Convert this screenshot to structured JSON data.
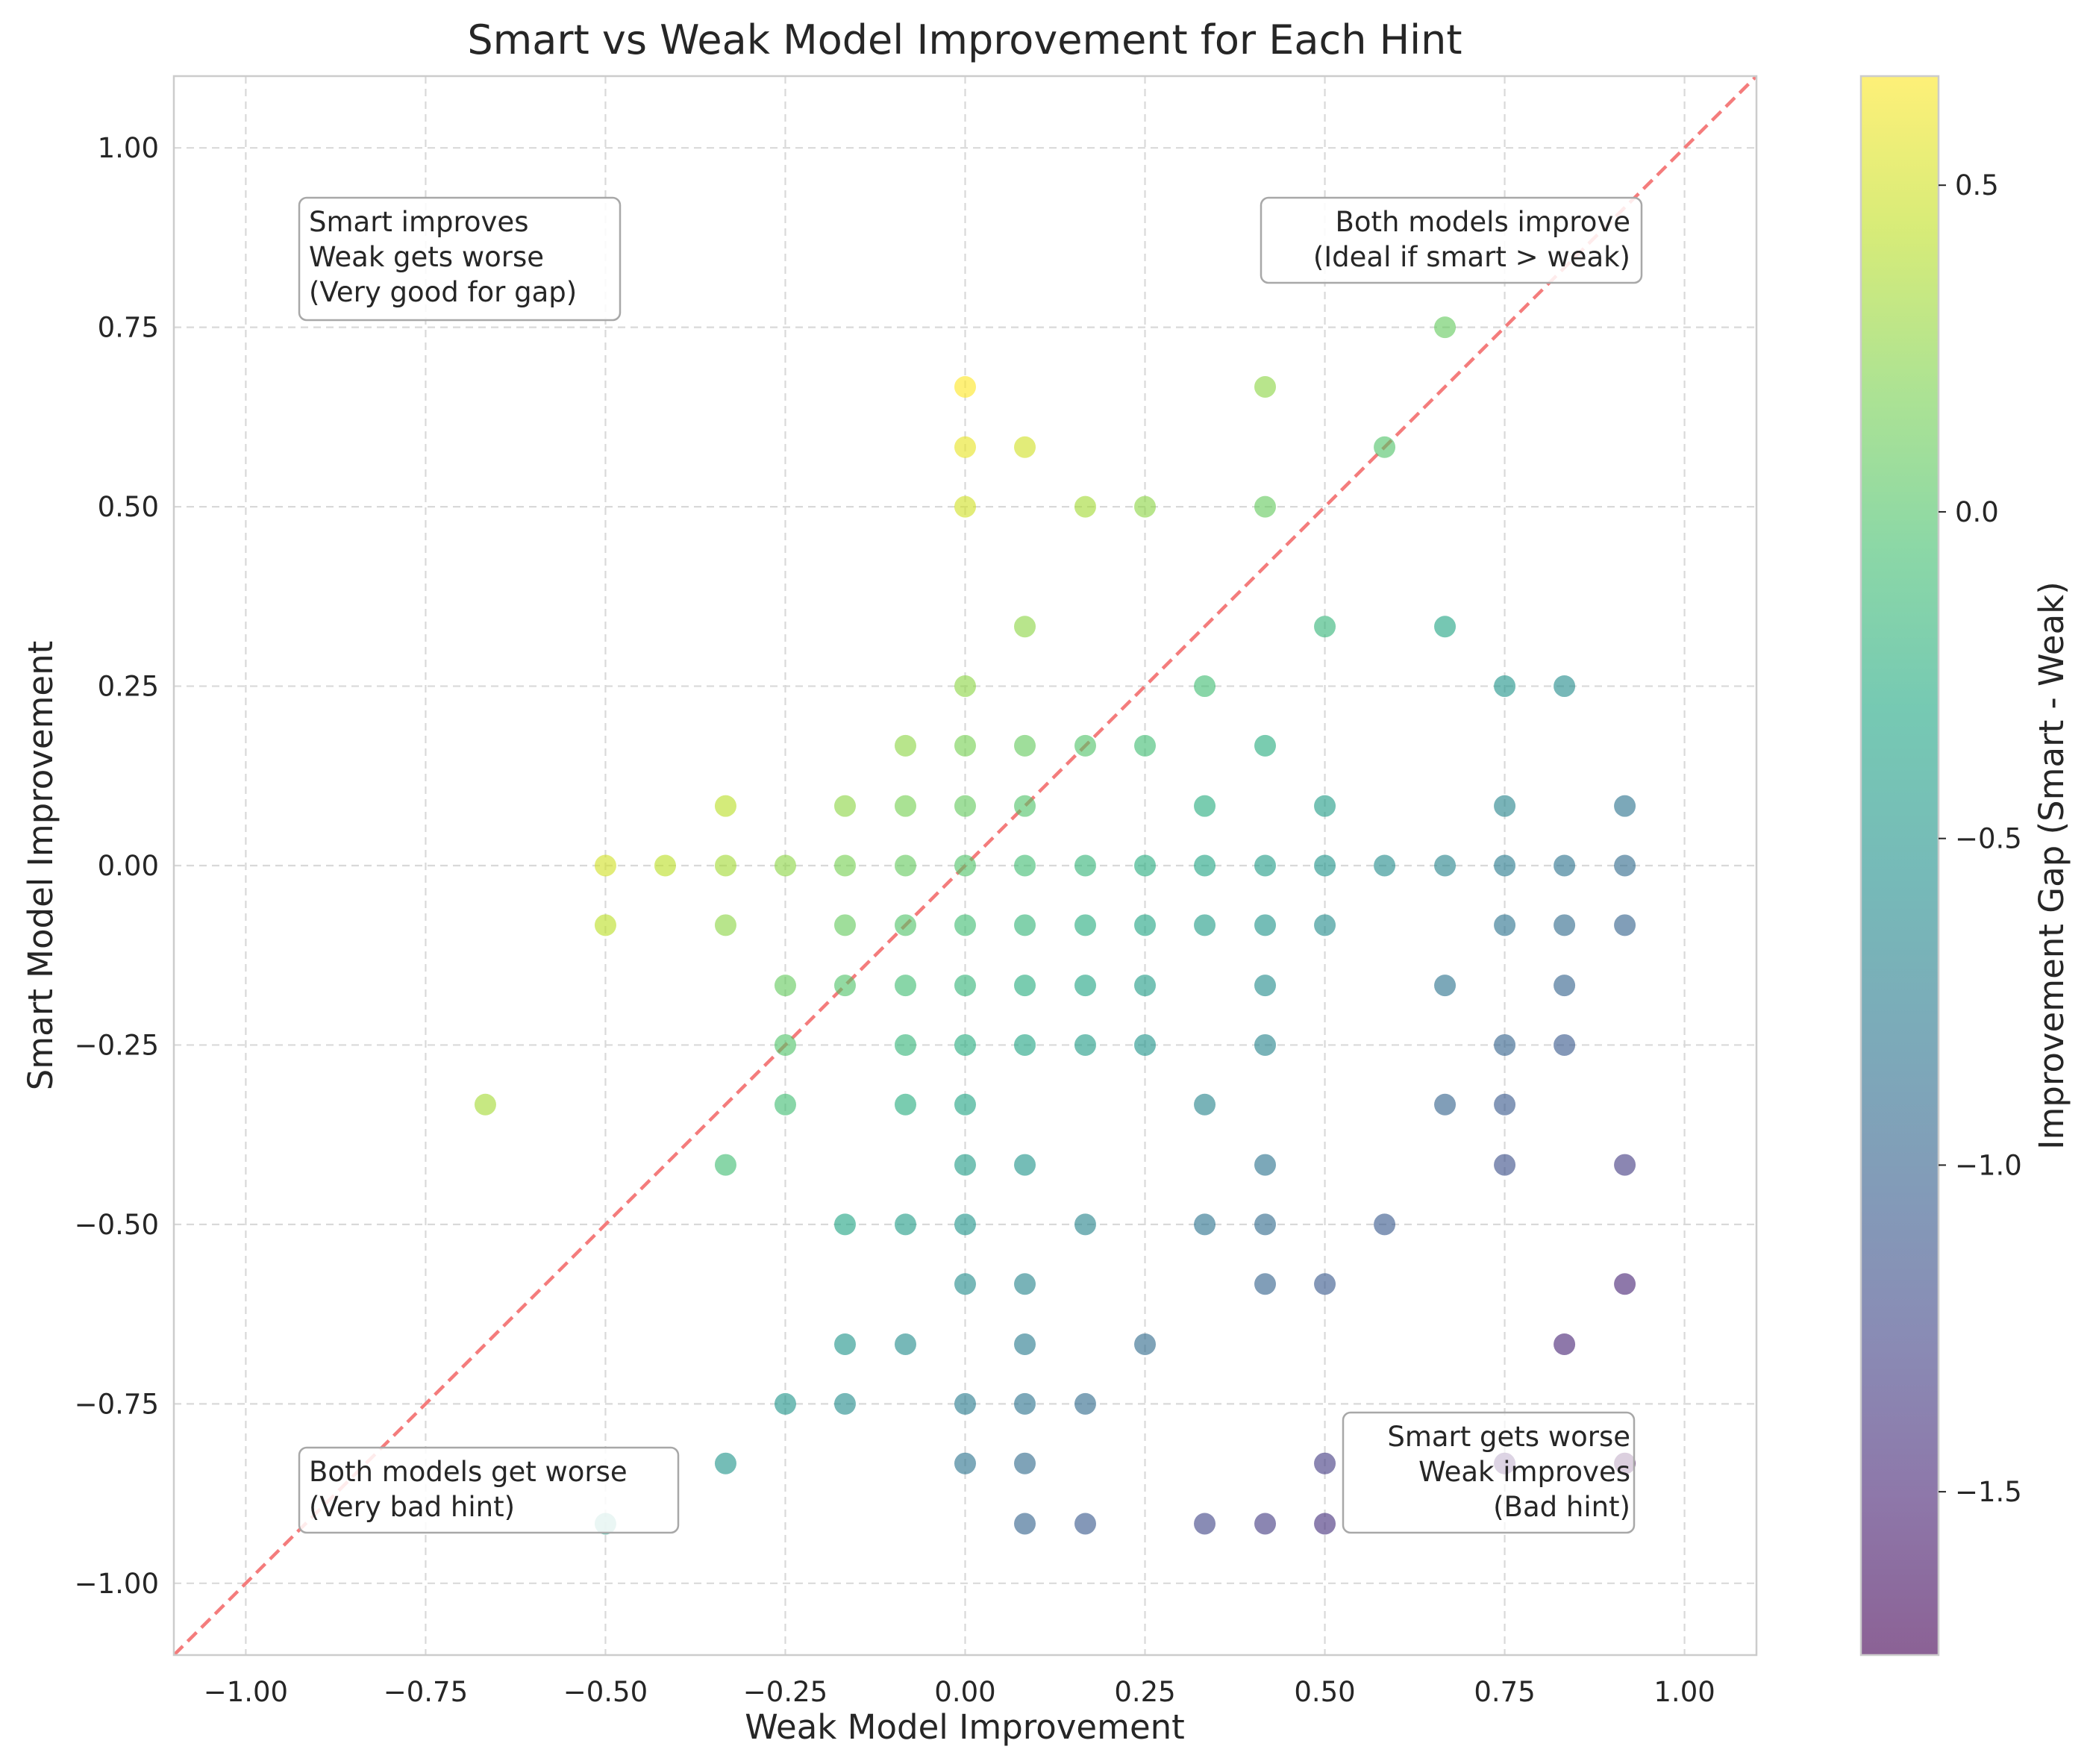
{
  "chart_data": {
    "type": "scatter",
    "title": "Smart vs Weak Model Improvement for Each Hint",
    "xlabel": "Weak Model Improvement",
    "ylabel": "Smart Model Improvement",
    "xlim": [
      -1.1,
      1.1
    ],
    "ylim": [
      -1.1,
      1.1
    ],
    "x_ticks": [
      "−1.00",
      "−0.75",
      "−0.50",
      "−0.25",
      "0.00",
      "0.25",
      "0.50",
      "0.75",
      "1.00"
    ],
    "y_ticks": [
      "−1.00",
      "−0.75",
      "−0.50",
      "−0.25",
      "0.00",
      "0.25",
      "0.50",
      "0.75",
      "1.00"
    ],
    "grid": true,
    "reference_line": {
      "description": "y = x",
      "color": "#f47c7c",
      "style": "dashed"
    },
    "colorbar": {
      "label": "Improvement Gap (Smart - Weak)",
      "colormap": "viridis",
      "range": [
        -1.75,
        0.667
      ],
      "ticks": [
        "−1.5",
        "−1.0",
        "−0.5",
        "0.0",
        "0.5"
      ]
    },
    "annotations": {
      "top_left": [
        "Smart improves",
        "Weak gets worse",
        "(Very good for gap)"
      ],
      "top_right": [
        "Both models improve",
        "(Ideal if smart > weak)"
      ],
      "bottom_left": [
        "Both models get worse",
        "(Very bad hint)"
      ],
      "bottom_right": [
        "Smart gets worse",
        "Weak improves",
        "(Bad hint)"
      ]
    },
    "points": [
      [
        -0.667,
        -0.333
      ],
      [
        -0.5,
        0
      ],
      [
        -0.5,
        -0.083
      ],
      [
        -0.5,
        -0.917
      ],
      [
        -0.417,
        0
      ],
      [
        -0.333,
        0.083
      ],
      [
        -0.333,
        0
      ],
      [
        -0.333,
        -0.083
      ],
      [
        -0.333,
        -0.417
      ],
      [
        -0.333,
        -0.833
      ],
      [
        -0.25,
        0
      ],
      [
        -0.25,
        -0.167
      ],
      [
        -0.25,
        -0.25
      ],
      [
        -0.25,
        -0.333
      ],
      [
        -0.25,
        -0.75
      ],
      [
        -0.167,
        0.083
      ],
      [
        -0.167,
        0
      ],
      [
        -0.167,
        -0.083
      ],
      [
        -0.167,
        -0.167
      ],
      [
        -0.167,
        -0.5
      ],
      [
        -0.167,
        -0.667
      ],
      [
        -0.167,
        -0.75
      ],
      [
        -0.083,
        0.167
      ],
      [
        -0.083,
        0.083
      ],
      [
        -0.083,
        0
      ],
      [
        -0.083,
        -0.083
      ],
      [
        -0.083,
        -0.167
      ],
      [
        -0.083,
        -0.25
      ],
      [
        -0.083,
        -0.333
      ],
      [
        -0.083,
        -0.5
      ],
      [
        -0.083,
        -0.667
      ],
      [
        0,
        0.667
      ],
      [
        0,
        0.583
      ],
      [
        0,
        0.5
      ],
      [
        0,
        0.25
      ],
      [
        0,
        0.167
      ],
      [
        0,
        0.083
      ],
      [
        0,
        0
      ],
      [
        0,
        -0.083
      ],
      [
        0,
        -0.167
      ],
      [
        0,
        -0.25
      ],
      [
        0,
        -0.333
      ],
      [
        0,
        -0.417
      ],
      [
        0,
        -0.5
      ],
      [
        0,
        -0.583
      ],
      [
        0,
        -0.75
      ],
      [
        0,
        -0.833
      ],
      [
        0.083,
        0.583
      ],
      [
        0.083,
        0.333
      ],
      [
        0.083,
        0.167
      ],
      [
        0.083,
        0.083
      ],
      [
        0.083,
        0
      ],
      [
        0.083,
        -0.083
      ],
      [
        0.083,
        -0.167
      ],
      [
        0.083,
        -0.25
      ],
      [
        0.083,
        -0.417
      ],
      [
        0.083,
        -0.583
      ],
      [
        0.083,
        -0.667
      ],
      [
        0.083,
        -0.75
      ],
      [
        0.083,
        -0.833
      ],
      [
        0.083,
        -0.917
      ],
      [
        0.167,
        0.5
      ],
      [
        0.167,
        0.167
      ],
      [
        0.167,
        0
      ],
      [
        0.167,
        -0.083
      ],
      [
        0.167,
        -0.167
      ],
      [
        0.167,
        -0.25
      ],
      [
        0.167,
        -0.5
      ],
      [
        0.167,
        -0.75
      ],
      [
        0.167,
        -0.917
      ],
      [
        0.25,
        0.5
      ],
      [
        0.25,
        0.167
      ],
      [
        0.25,
        0
      ],
      [
        0.25,
        -0.083
      ],
      [
        0.25,
        -0.167
      ],
      [
        0.25,
        -0.25
      ],
      [
        0.25,
        -0.667
      ],
      [
        0.333,
        0.25
      ],
      [
        0.333,
        0.083
      ],
      [
        0.333,
        0
      ],
      [
        0.333,
        -0.083
      ],
      [
        0.333,
        -0.333
      ],
      [
        0.333,
        -0.5
      ],
      [
        0.333,
        -0.917
      ],
      [
        0.417,
        0.667
      ],
      [
        0.417,
        0.5
      ],
      [
        0.417,
        0.167
      ],
      [
        0.417,
        0
      ],
      [
        0.417,
        -0.083
      ],
      [
        0.417,
        -0.167
      ],
      [
        0.417,
        -0.25
      ],
      [
        0.417,
        -0.417
      ],
      [
        0.417,
        -0.5
      ],
      [
        0.417,
        -0.583
      ],
      [
        0.417,
        -0.917
      ],
      [
        0.5,
        0.333
      ],
      [
        0.5,
        0.083
      ],
      [
        0.5,
        0
      ],
      [
        0.5,
        -0.083
      ],
      [
        0.5,
        -0.583
      ],
      [
        0.5,
        -0.833
      ],
      [
        0.5,
        -0.917
      ],
      [
        0.583,
        0.583
      ],
      [
        0.583,
        0
      ],
      [
        0.583,
        -0.5
      ],
      [
        0.667,
        0.75
      ],
      [
        0.667,
        0.333
      ],
      [
        0.667,
        0
      ],
      [
        0.667,
        -0.167
      ],
      [
        0.667,
        -0.333
      ],
      [
        0.75,
        0.25
      ],
      [
        0.75,
        0.083
      ],
      [
        0.75,
        0
      ],
      [
        0.75,
        -0.083
      ],
      [
        0.75,
        -0.25
      ],
      [
        0.75,
        -0.333
      ],
      [
        0.75,
        -0.417
      ],
      [
        0.75,
        -0.833
      ],
      [
        0.833,
        0.25
      ],
      [
        0.833,
        0
      ],
      [
        0.833,
        -0.083
      ],
      [
        0.833,
        -0.167
      ],
      [
        0.833,
        -0.25
      ],
      [
        0.833,
        -0.667
      ],
      [
        0.917,
        0.083
      ],
      [
        0.917,
        0
      ],
      [
        0.917,
        -0.083
      ],
      [
        0.917,
        -0.417
      ],
      [
        0.917,
        -0.583
      ],
      [
        0.917,
        -0.833
      ]
    ]
  }
}
